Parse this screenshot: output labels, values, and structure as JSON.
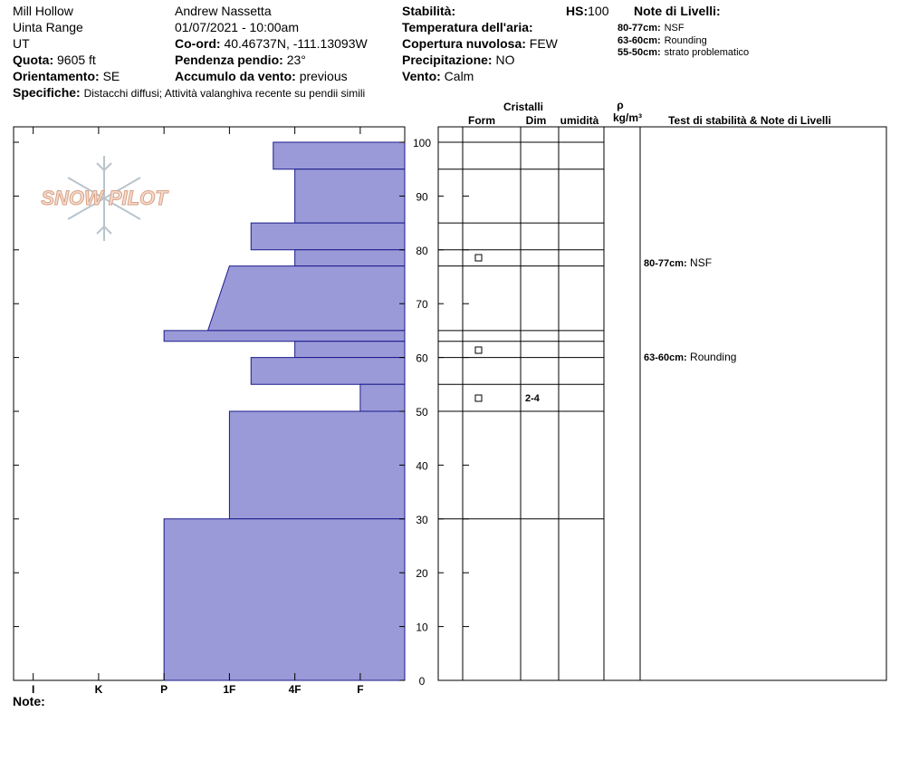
{
  "header": {
    "location": "Mill Hollow",
    "range": "Uinta Range",
    "state": "UT",
    "observer": "Andrew Nassetta",
    "datetime": "01/07/2021 - 10:00am",
    "elevation": {
      "label": "Quota:",
      "value": "9605 ft"
    },
    "aspect": {
      "label": "Orientamento:",
      "value": "SE"
    },
    "specifics": {
      "label": "Specifiche:",
      "value": "Distacchi diffusi;  Attività valanghiva recente su pendii simili"
    },
    "coords": {
      "label": "Co-ord:",
      "value": "40.46737N, -111.13093W"
    },
    "slope": {
      "label": "Pendenza pendio:",
      "value": "23°"
    },
    "wind_loading": {
      "label": "Accumulo da vento:",
      "value": "previous"
    },
    "stability": {
      "label": "Stabilità:"
    },
    "air_temp": {
      "label": "Temperatura dell'aria:"
    },
    "sky": {
      "label": "Copertura nuvolosa:",
      "value": "FEW"
    },
    "precip": {
      "label": "Precipitazione:",
      "value": "NO"
    },
    "wind": {
      "label": "Vento:",
      "value": "Calm"
    },
    "hs": {
      "label": "HS:",
      "value": "100"
    },
    "notes_title": "Note di Livelli:",
    "notes": [
      {
        "label": "80-77cm:",
        "text": "NSF"
      },
      {
        "label": "63-60cm:",
        "text": "Rounding"
      },
      {
        "label": "55-50cm:",
        "text": "strato problematico"
      }
    ],
    "logo": "SNOW PILOT",
    "footer_note": "Note:"
  },
  "columns": {
    "crystals": "Cristalli",
    "form": "Form",
    "dim": "Dim",
    "moisture": "umidità",
    "rho": "ρ",
    "density_unit": "kg/m³",
    "tests": "Test di stabilità & Note di Livelli"
  },
  "chart_data": {
    "type": "snow-profile",
    "ylim": [
      0,
      100
    ],
    "yticks": [
      0,
      10,
      20,
      30,
      40,
      50,
      60,
      70,
      80,
      90,
      100
    ],
    "xlim": [
      6.3,
      0.32
    ],
    "xticks": [
      {
        "value": 6,
        "label": "I"
      },
      {
        "value": 5,
        "label": "K"
      },
      {
        "value": 4,
        "label": "P"
      },
      {
        "value": 3,
        "label": "1F"
      },
      {
        "value": 2,
        "label": "4F"
      },
      {
        "value": 1,
        "label": "F"
      }
    ],
    "color": "#9b9ad8",
    "layers": [
      {
        "top": 100,
        "bottom": 95,
        "hardness": 2.33
      },
      {
        "top": 95,
        "bottom": 85,
        "hardness": 2
      },
      {
        "top": 85,
        "bottom": 80,
        "hardness": 2.67
      },
      {
        "top": 80,
        "bottom": 77,
        "hardness": 2
      },
      {
        "top": 77,
        "bottom": 65,
        "hardness_top": 3,
        "hardness_bottom": 3.33
      },
      {
        "top": 65,
        "bottom": 63,
        "hardness": 4
      },
      {
        "top": 63,
        "bottom": 60,
        "hardness": 2
      },
      {
        "top": 60,
        "bottom": 55,
        "hardness": 2.67
      },
      {
        "top": 55,
        "bottom": 50,
        "hardness": 1,
        "grain_size": "2-4"
      },
      {
        "top": 50,
        "bottom": 30,
        "hardness": 3
      },
      {
        "top": 30,
        "bottom": 0,
        "hardness": 4
      }
    ]
  }
}
